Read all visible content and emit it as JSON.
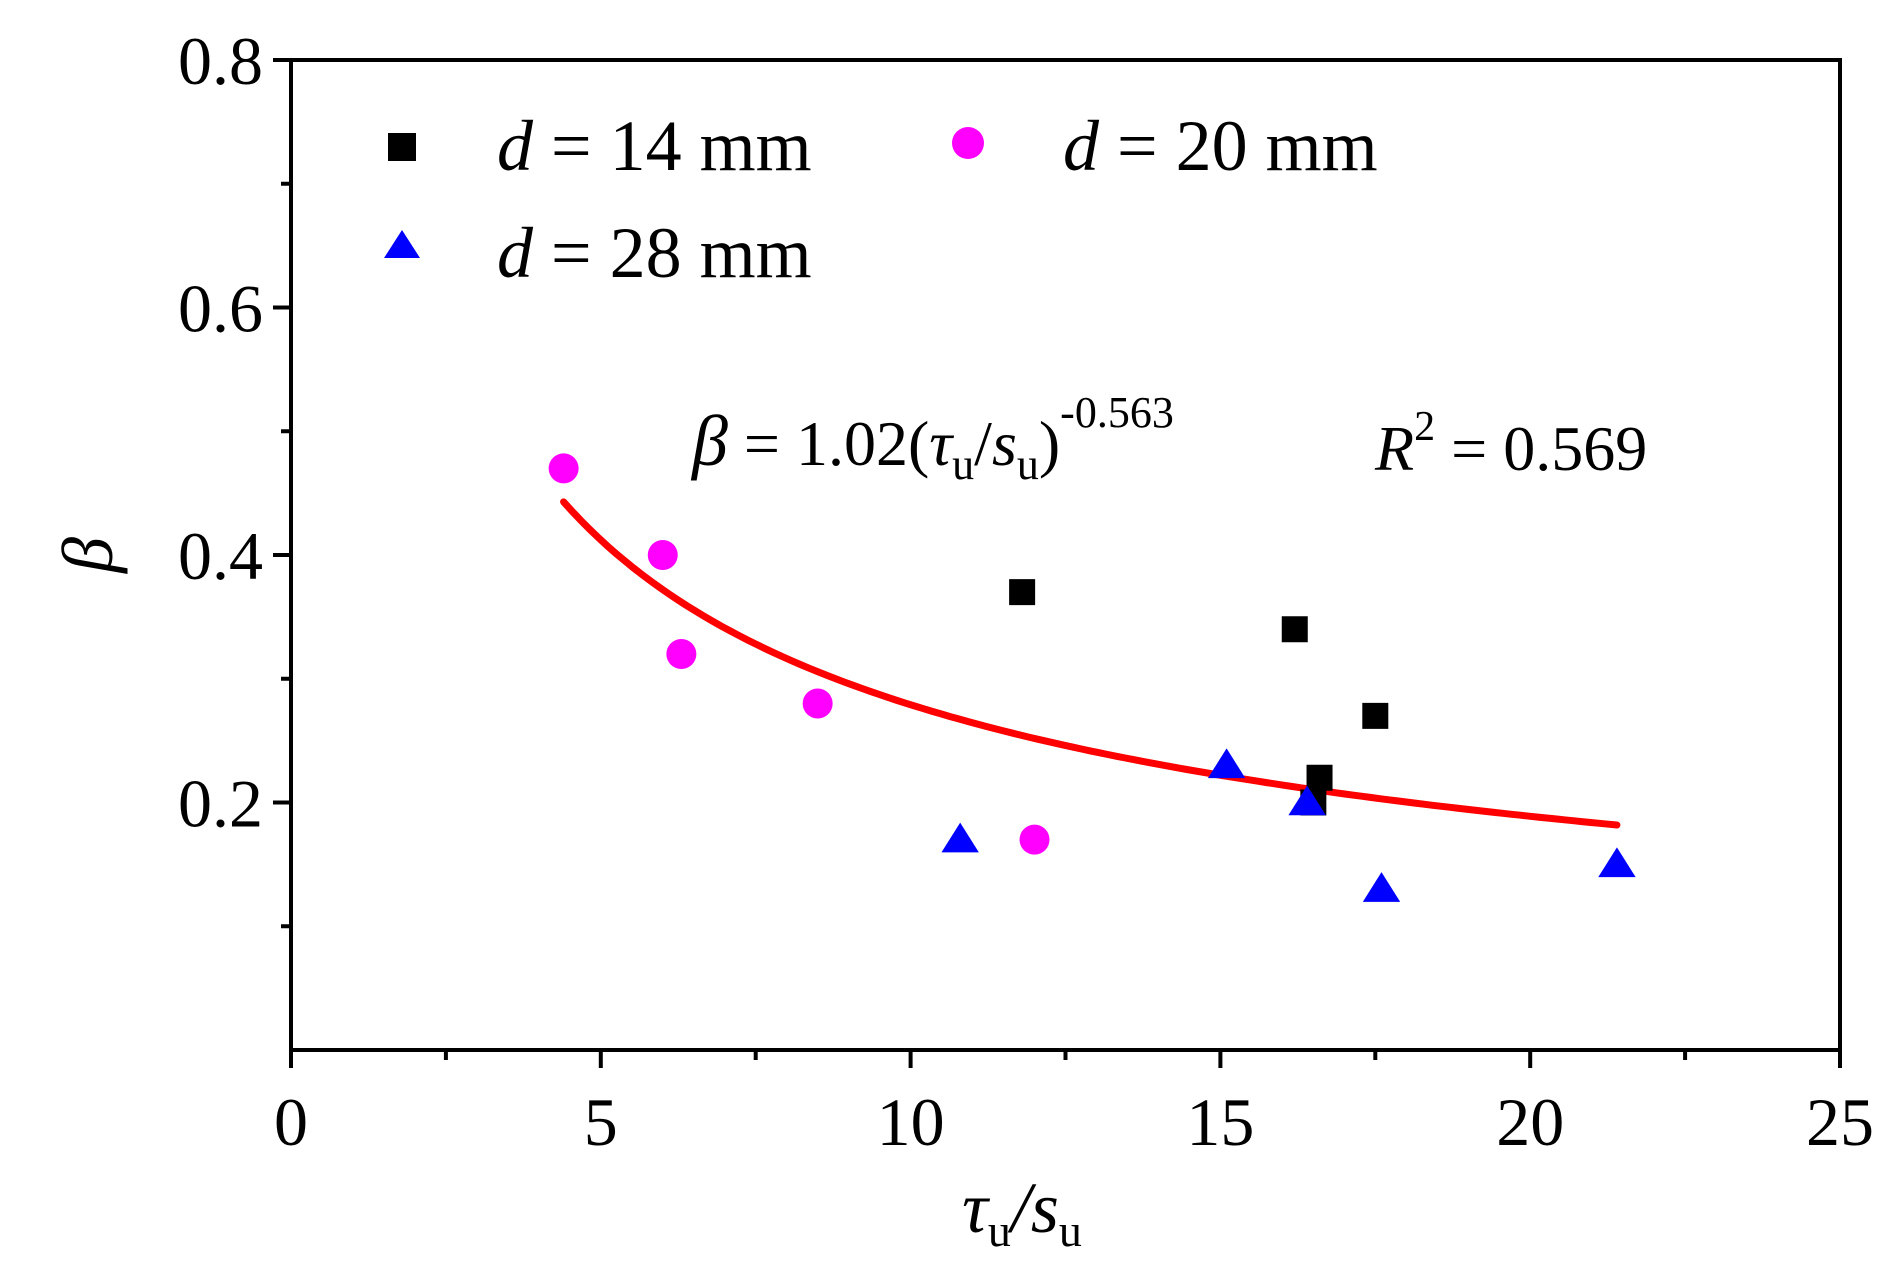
{
  "chart_data": {
    "type": "scatter",
    "title": "",
    "xlabel": {
      "main": "τ",
      "sub1": "u",
      "slash": "/s",
      "sub2": "u"
    },
    "ylabel": "β",
    "xlim": [
      0,
      25
    ],
    "ylim": [
      0,
      0.8
    ],
    "x_major_ticks": [
      0,
      5,
      10,
      15,
      20,
      25
    ],
    "x_minor_ticks": [
      2.5,
      7.5,
      12.5,
      17.5,
      22.5
    ],
    "y_major_ticks": [
      0.2,
      0.4,
      0.6,
      0.8
    ],
    "y_minor_ticks": [
      0.1,
      0.3,
      0.5,
      0.7
    ],
    "x_tick_labels": [
      "0",
      "5",
      "10",
      "15",
      "20",
      "25"
    ],
    "y_tick_labels": [
      "0.2",
      "0.4",
      "0.6",
      "0.8"
    ],
    "legend_position": "top-left",
    "series": [
      {
        "name": "d = 14 mm",
        "legend": {
          "var": "d",
          "rest": " = 14 mm"
        },
        "marker": "square",
        "color": "#000000",
        "x": [
          11.8,
          16.2,
          17.5,
          16.6,
          16.5
        ],
        "y": [
          0.37,
          0.34,
          0.27,
          0.22,
          0.2
        ]
      },
      {
        "name": "d = 20 mm",
        "legend": {
          "var": "d",
          "rest": " = 20 mm"
        },
        "marker": "circle",
        "color": "#ff00ff",
        "x": [
          4.4,
          6.0,
          6.3,
          8.5,
          12.0
        ],
        "y": [
          0.47,
          0.4,
          0.32,
          0.28,
          0.17
        ]
      },
      {
        "name": "d = 28 mm",
        "legend": {
          "var": "d",
          "rest": " = 28 mm"
        },
        "marker": "triangle",
        "color": "#0000ff",
        "x": [
          10.8,
          15.1,
          16.4,
          17.6,
          21.4
        ],
        "y": [
          0.17,
          0.23,
          0.2,
          0.13,
          0.15
        ]
      }
    ],
    "fit": {
      "a": 1.02,
      "b": -0.563,
      "x_range": [
        4.4,
        21.4
      ],
      "color": "#ff0000",
      "equation": {
        "beta": "β",
        "eq": " = 1.02(",
        "tau": "τ",
        "sub1": "u",
        "slash": "/",
        "s": "s",
        "sub2": "u",
        "close": ")",
        "exp": "-0.563",
        "r": "R",
        "r_exp": "2",
        "r_value": " = 0.569"
      }
    }
  }
}
